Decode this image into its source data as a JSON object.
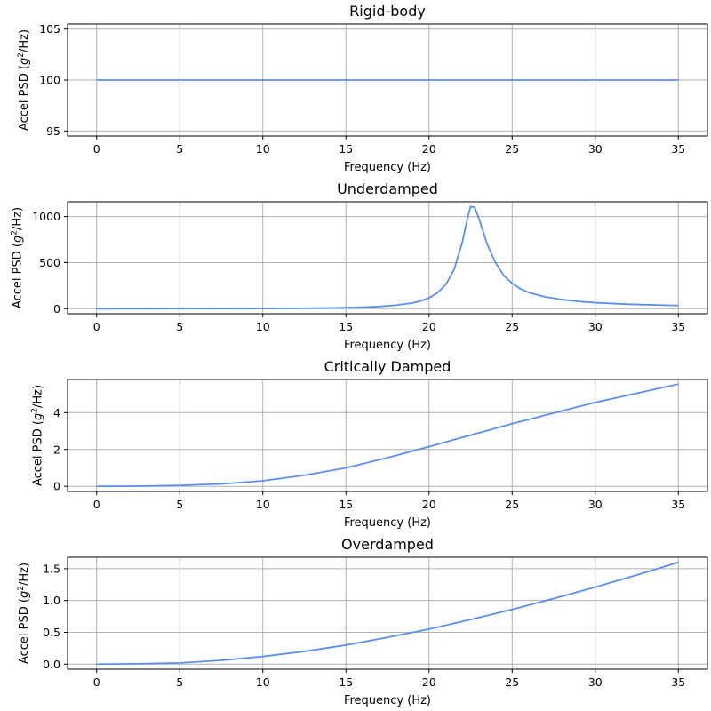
{
  "chart_data": [
    {
      "type": "line",
      "title": "Rigid-body",
      "xlabel": "Frequency (Hz)",
      "ylabel": "Accel PSD (g²/Hz)",
      "xlim": [
        -1.75,
        36.75
      ],
      "ylim": [
        94.5,
        105.5
      ],
      "xticks": [
        0,
        5,
        10,
        15,
        20,
        25,
        30,
        35
      ],
      "yticks": [
        95,
        100,
        105
      ],
      "grid": true,
      "color": "#5b8fef",
      "series": [
        {
          "x": [
            0,
            35
          ],
          "y": [
            100,
            100
          ]
        }
      ]
    },
    {
      "type": "line",
      "title": "Underdamped",
      "xlabel": "Frequency (Hz)",
      "ylabel": "Accel PSD (g²/Hz)",
      "xlim": [
        -1.75,
        36.75
      ],
      "ylim": [
        -55,
        1160
      ],
      "xticks": [
        0,
        5,
        10,
        15,
        20,
        25,
        30,
        35
      ],
      "yticks": [
        0,
        500,
        1000
      ],
      "grid": true,
      "color": "#5b8fef",
      "series": [
        {
          "x": [
            0,
            5,
            10,
            12,
            14,
            15,
            16,
            17,
            18,
            19,
            19.5,
            20,
            20.5,
            21,
            21.5,
            22,
            22.25,
            22.5,
            22.75,
            23,
            23.5,
            24,
            24.5,
            25,
            25.5,
            26,
            27,
            28,
            29,
            30,
            32,
            35
          ],
          "y": [
            0,
            0.3,
            2,
            4,
            8,
            11,
            16,
            24,
            38,
            62,
            84,
            118,
            170,
            260,
            420,
            720,
            930,
            1110,
            1100,
            980,
            700,
            500,
            360,
            275,
            215,
            175,
            128,
            99,
            79,
            65,
            48,
            34
          ]
        }
      ]
    },
    {
      "type": "line",
      "title": "Critically Damped",
      "xlabel": "Frequency (Hz)",
      "ylabel": "Accel PSD (g²/Hz)",
      "xlim": [
        -1.75,
        36.75
      ],
      "ylim": [
        -0.28,
        5.8
      ],
      "xticks": [
        0,
        5,
        10,
        15,
        20,
        25,
        30,
        35
      ],
      "yticks": [
        0,
        2,
        4
      ],
      "grid": true,
      "color": "#5b8fef",
      "series": [
        {
          "x": [
            0,
            2.5,
            5,
            7.5,
            10,
            12.5,
            15,
            17.5,
            20,
            22.5,
            25,
            27.5,
            30,
            32.5,
            35
          ],
          "y": [
            0,
            0.01,
            0.05,
            0.13,
            0.3,
            0.6,
            1.0,
            1.55,
            2.15,
            2.78,
            3.4,
            3.98,
            4.55,
            5.05,
            5.55
          ]
        }
      ]
    },
    {
      "type": "line",
      "title": "Overdamped",
      "xlabel": "Frequency (Hz)",
      "ylabel": "Accel PSD (g²/Hz)",
      "xlim": [
        -1.75,
        36.75
      ],
      "ylim": [
        -0.08,
        1.68
      ],
      "xticks": [
        0,
        5,
        10,
        15,
        20,
        25,
        30,
        35
      ],
      "yticks": [
        0.0,
        0.5,
        1.0,
        1.5
      ],
      "ytick_labels": [
        "0.0",
        "0.5",
        "1.0",
        "1.5"
      ],
      "grid": true,
      "color": "#5b8fef",
      "series": [
        {
          "x": [
            0,
            2.5,
            5,
            7.5,
            10,
            12.5,
            15,
            17.5,
            20,
            22.5,
            25,
            27.5,
            30,
            32.5,
            35
          ],
          "y": [
            0,
            0.005,
            0.02,
            0.06,
            0.12,
            0.2,
            0.3,
            0.42,
            0.55,
            0.7,
            0.86,
            1.03,
            1.21,
            1.4,
            1.6
          ]
        }
      ]
    }
  ]
}
